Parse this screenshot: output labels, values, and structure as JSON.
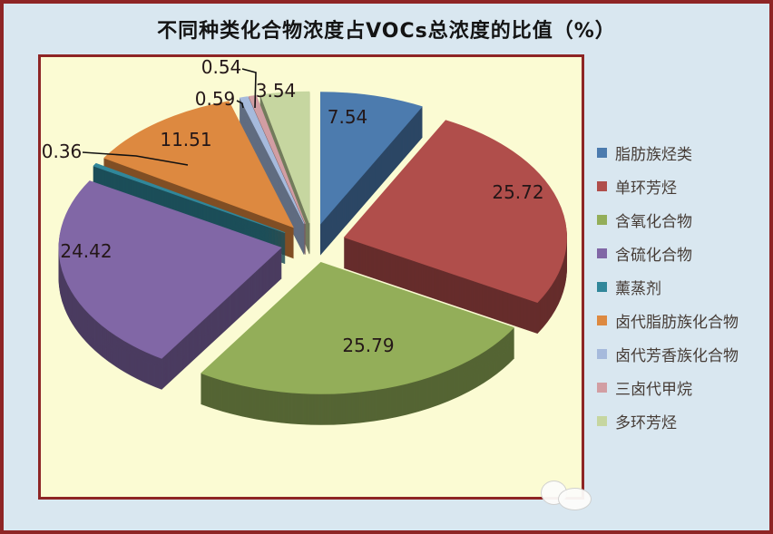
{
  "chart_data": {
    "type": "pie",
    "style": "3d-exploded-pie",
    "title": "不同种类化合物浓度占VOCs总浓度的比值（%）",
    "unit": "%",
    "legend_position": "right",
    "data_labels": "value",
    "total": 100,
    "series": [
      {
        "label": "脂肪族烃类",
        "value": 7.54,
        "color": "#4C7BAE"
      },
      {
        "label": "单环芳烃",
        "value": 25.72,
        "color": "#B04E4B"
      },
      {
        "label": "含氧化合物",
        "value": 25.79,
        "color": "#93AE59"
      },
      {
        "label": "含硫化合物",
        "value": 24.42,
        "color": "#8167A6"
      },
      {
        "label": "薰蒸剂",
        "value": 0.36,
        "color": "#31879A"
      },
      {
        "label": "卤代脂肪族化合物",
        "value": 11.51,
        "color": "#DD8940"
      },
      {
        "label": "卤代芳香族化合物",
        "value": 0.59,
        "color": "#A6BADC"
      },
      {
        "label": "三卤代甲烷",
        "value": 0.54,
        "color": "#D29EA3"
      },
      {
        "label": "多环芳烃",
        "value": 3.54,
        "color": "#C6D6A0"
      }
    ]
  },
  "colors": {
    "canvas_bg": "#D9E7F0",
    "plot_bg": "#FBFBD3",
    "frame_border": "#8E2525",
    "title_text": "#141414",
    "data_label_text": "#241718",
    "legend_text": "#463C36",
    "leader_line": "#111111"
  }
}
